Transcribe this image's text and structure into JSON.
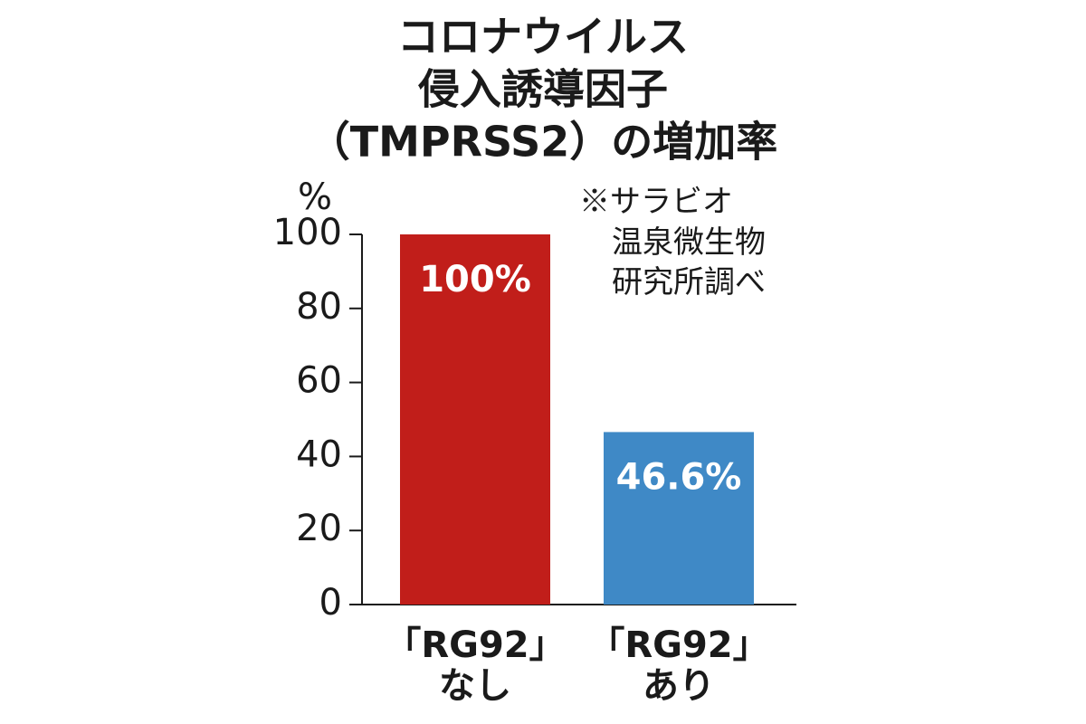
{
  "chart_data": {
    "type": "bar",
    "title": [
      "コロナウイルス",
      "侵入誘導因子",
      "（TMPRSS2）の増加率"
    ],
    "y_label": "%",
    "annotation": [
      "※サラビオ",
      "温泉微生物",
      "研究所調べ"
    ],
    "categories": [
      [
        "「RG92」",
        "なし"
      ],
      [
        "「RG92」",
        "あり"
      ]
    ],
    "values": [
      100,
      46.6
    ],
    "value_labels": [
      "100%",
      "46.6%"
    ],
    "colors": [
      "#c11e1a",
      "#3f89c6"
    ],
    "ylim": [
      0,
      100
    ],
    "yticks": [
      0,
      20,
      40,
      60,
      80,
      100
    ],
    "grid": false
  }
}
